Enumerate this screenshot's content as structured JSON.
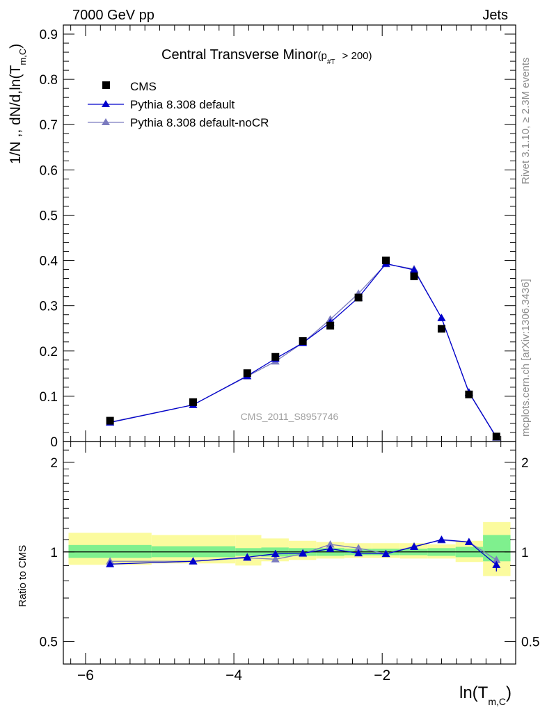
{
  "header": {
    "left": "7000 GeV pp",
    "right": "Jets"
  },
  "side_labels": {
    "rivet": "Rivet 3.1.10, ≥ 2.3M events",
    "mcplots": "mcplots.cern.ch [arXiv:1306.3436]"
  },
  "colors": {
    "cms": "#000000",
    "default": "#0000cc",
    "nocr": "#7b7bbf",
    "band_inner": "#7ff08e",
    "band_outer": "#fbfb9e"
  },
  "chart_data": [
    {
      "type": "line",
      "title": "Central Transverse Minor",
      "title_suffix": "(p",
      "title_sub": "#T",
      "title_cut": "> 200)",
      "ylabel": "1/N ,, dN/d,ln(T",
      "ylabel_sub": "m,C",
      "ylabel_end": ")",
      "watermark": "CMS_2011_S8957746",
      "ylim": [
        0,
        0.92
      ],
      "xlim": [
        -6.3,
        -0.2
      ],
      "yticks": [
        0,
        0.1,
        0.2,
        0.3,
        0.4,
        0.5,
        0.6,
        0.7,
        0.8,
        0.9
      ],
      "ytick_labels": [
        "0",
        "0.1",
        "0.2",
        "0.3",
        "0.4",
        "0.5",
        "0.6",
        "0.7",
        "0.8",
        "0.9"
      ],
      "legend": [
        "CMS",
        "Pythia 8.308 default",
        "Pythia 8.308 default-noCR"
      ],
      "x": [
        -5.67,
        -4.55,
        -3.82,
        -3.44,
        -3.07,
        -2.7,
        -2.32,
        -1.95,
        -1.57,
        -1.2,
        -0.83,
        -0.46
      ],
      "series": [
        {
          "name": "CMS",
          "values": [
            0.046,
            0.087,
            0.151,
            0.187,
            0.222,
            0.256,
            0.318,
            0.4,
            0.365,
            0.249,
            0.104,
            0.011
          ]
        },
        {
          "name": "Pythia 8.308 default",
          "values": [
            0.042,
            0.081,
            0.145,
            0.183,
            0.218,
            0.263,
            0.318,
            0.393,
            0.379,
            0.273,
            0.108,
            0.009
          ]
        },
        {
          "name": "Pythia 8.308 default-noCR",
          "values": [
            0.043,
            0.081,
            0.144,
            0.177,
            0.218,
            0.27,
            0.327,
            0.392,
            0.381,
            0.273,
            0.109,
            0.01
          ]
        }
      ]
    },
    {
      "type": "line",
      "ylabel": "Ratio to CMS",
      "xlabel": "ln(T",
      "xlabel_sub": "m,C",
      "xlabel_end": ")",
      "yscale": "log",
      "ylim": [
        0.42,
        2.35
      ],
      "xticks": [
        -6,
        -4,
        -2
      ],
      "xtick_labels": [
        "−6",
        "−4",
        "−2"
      ],
      "yticks": [
        0.5,
        1,
        2
      ],
      "ytick_labels": [
        "0.5",
        "1",
        "2"
      ],
      "x": [
        -5.67,
        -4.55,
        -3.82,
        -3.44,
        -3.07,
        -2.7,
        -2.32,
        -1.95,
        -1.57,
        -1.2,
        -0.83,
        -0.46
      ],
      "bin_edges": [
        -6.23,
        -5.11,
        -3.98,
        -3.63,
        -3.26,
        -2.89,
        -2.51,
        -2.14,
        -1.76,
        -1.39,
        -1.01,
        -0.64,
        -0.27
      ],
      "band_inner": [
        [
          0.955,
          1.055
        ],
        [
          0.96,
          1.045
        ],
        [
          0.97,
          1.03
        ],
        [
          0.965,
          1.035
        ],
        [
          0.97,
          1.03
        ],
        [
          0.97,
          1.03
        ],
        [
          0.975,
          1.025
        ],
        [
          0.975,
          1.025
        ],
        [
          0.975,
          1.025
        ],
        [
          0.97,
          1.03
        ],
        [
          0.96,
          1.04
        ],
        [
          0.93,
          1.14
        ]
      ],
      "band_outer": [
        [
          0.905,
          1.16
        ],
        [
          0.915,
          1.14
        ],
        [
          0.9,
          1.14
        ],
        [
          0.93,
          1.11
        ],
        [
          0.94,
          1.09
        ],
        [
          0.95,
          1.08
        ],
        [
          0.955,
          1.07
        ],
        [
          0.955,
          1.07
        ],
        [
          0.95,
          1.07
        ],
        [
          0.95,
          1.06
        ],
        [
          0.925,
          1.09
        ],
        [
          0.83,
          1.26
        ]
      ],
      "series": [
        {
          "name": "Pythia 8.308 default",
          "values": [
            0.91,
            0.93,
            0.96,
            0.985,
            0.99,
            1.025,
            0.99,
            0.985,
            1.04,
            1.1,
            1.08,
            0.905
          ]
        },
        {
          "name": "Pythia 8.308 default-noCR",
          "values": [
            0.93,
            0.93,
            0.955,
            0.945,
            0.985,
            1.06,
            1.03,
            0.985,
            1.045,
            1.095,
            1.08,
            0.94
          ]
        }
      ]
    }
  ]
}
